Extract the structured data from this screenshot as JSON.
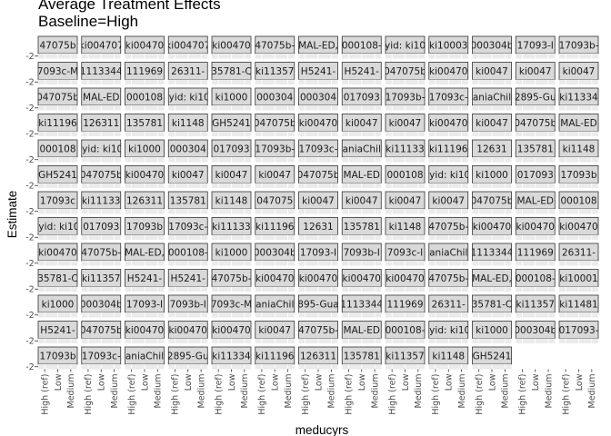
{
  "chart_data": {
    "type": "scatter",
    "title": "Average Treatment Effects",
    "subtitle": "Baseline=High",
    "xlabel": "meducyrs",
    "ylabel": "Estimate",
    "x_categories": [
      "High (ref)",
      "Low",
      "Medium"
    ],
    "y_tick_labels": [
      "-2",
      "-2"
    ],
    "grid": true,
    "legend": "none",
    "facet_columns": 13,
    "facet_rows": 13,
    "panel_count": 167,
    "panel_labels": [
      "47075b",
      "ki004707",
      "ki00470",
      "ki004707",
      "ki00470",
      "47075b-",
      "MAL-ED,",
      "000108-",
      "yid: ki10",
      "ki10003",
      "000304b",
      "17093-I",
      "17093b-",
      "7093c-M",
      "1113344",
      "111969",
      "26311-",
      "35781-C",
      "ki11357",
      "H5241-",
      "H5241-",
      "047075b",
      "ki00470",
      "ki0047",
      "ki0047",
      "ki0047",
      "047075b",
      "MAL-ED",
      "000108",
      "lyid: ki10",
      "ki1000",
      "000304",
      "000304",
      "017093",
      "17093b-",
      "17093c-",
      "aniaChil",
      "2895-Gu",
      "ki11334",
      "ki11196",
      "126311",
      "135781",
      "ki1148",
      "GH5241",
      "047075b",
      "ki00470",
      "ki0047",
      "ki0047",
      "ki00470",
      "ki0047",
      "047075b",
      "MAL-ED",
      "000108",
      "lyid: ki10",
      "ki1000",
      "000304",
      "017093",
      "17093b-",
      "17093c-",
      "aniaChil",
      "ki11133",
      "ki11196",
      "12631",
      "135781",
      "ki1148",
      "GH5241",
      "047075b",
      "ki00470",
      "ki0047",
      "ki0047",
      "ki0047",
      "047075b",
      "MAL-ED",
      "000108",
      "lyid: ki10",
      "ki1000",
      "017093",
      "17093b",
      "17093c",
      "ki11133",
      "126311",
      "135781",
      "ki1148",
      "047075",
      "ki0047",
      "ki0047",
      "ki0047",
      "ki0047",
      "047075b",
      "MAL-ED",
      "000108",
      "lyid: ki10",
      "017093",
      "17093b",
      "17093c-",
      "ki11133",
      "ki11196",
      "12631",
      "135781",
      "ki1148",
      "47075b-",
      "ki00470",
      "ki00470",
      "ki00470",
      "ki00470",
      "47075b-",
      "MAL-ED,",
      "000108-",
      "ki1000",
      "000304b",
      "17093-I",
      "7093b-I",
      "7093c-I",
      "aniaChil",
      "1113344",
      "111969",
      "26311-",
      "35781-C",
      "ki11357",
      "H5241-",
      "H5241-",
      "47075b-",
      "ki00470",
      "ki00470",
      "ki00470",
      "ki00470",
      "47075b-",
      "MAL-ED,",
      "000108-",
      "ki10001",
      "ki1000",
      "000304b",
      "17093-I",
      "7093b-I",
      "7093c-M",
      "aniaChil",
      "895-Gua",
      "1113344",
      "111969",
      "26311-",
      "35781-C",
      "ki11357",
      "ki11481",
      "H5241-",
      "047075b",
      "ki00470",
      "ki00470",
      "ki00470",
      "ki0047",
      "47075b-",
      "MAL-ED",
      "000108-",
      "lyid: ki10",
      "ki1000",
      "000304b",
      "017093-",
      "17093b",
      "17093c-",
      "aniaChil",
      "2895-Gu",
      "ki11334",
      "ki11196",
      "126311",
      "135781",
      "ki11357",
      "ki1148",
      "GH5241"
    ],
    "series": []
  }
}
